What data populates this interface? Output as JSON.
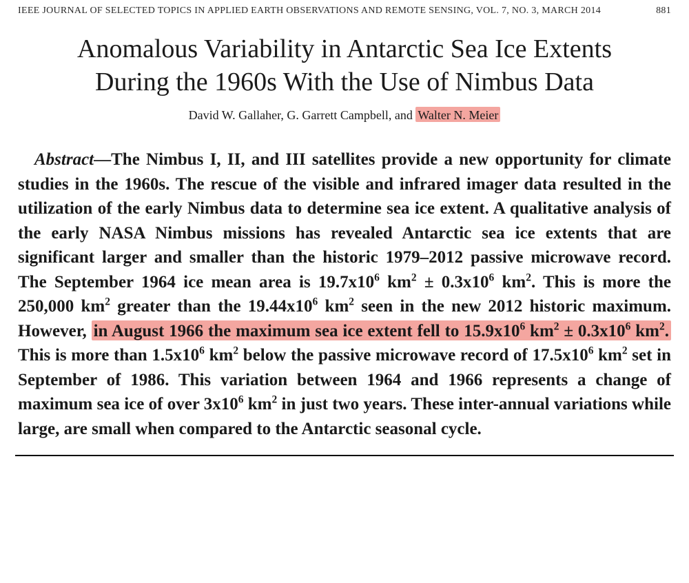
{
  "header": {
    "journal": "IEEE JOURNAL OF SELECTED TOPICS IN APPLIED EARTH OBSERVATIONS AND REMOTE SENSING, VOL. 7, NO. 3, MARCH 2014",
    "page_number": "881"
  },
  "title": {
    "line1": "Anomalous Variability in Antarctic Sea Ice Extents",
    "line2": "During the 1960s With the Use of Nimbus Data"
  },
  "authors": {
    "a1": "David W. Gallaher",
    "sep1": ",  ",
    "a2": "G. Garrett Campbell",
    "sep2": ", and ",
    "a3": "Walter N. Meier"
  },
  "abstract": {
    "label": "Abstract",
    "dash": "—",
    "p1a": "The Nimbus I, II, and III satellites provide a new opportunity for climate studies in the 1960s. The rescue of the visible and infrared imager data resulted in the utilization of the early Nimbus data to determine sea ice extent. A qualitative analysis of the early NASA Nimbus missions has revealed Antarctic sea ice extents that are significant larger and smaller than the historic 1979–2012 passive microwave record. The September 1964 ice mean area is ",
    "val1": "19.7x10",
    "unit_km2": " km",
    "pm": " ± ",
    "val2": "0.3x10",
    "p1b": ". This is more the 250,000 km",
    "p1c": " greater than the ",
    "val3": "19.44x10",
    "p1d": " seen in the new 2012 historic maximum. However, ",
    "hl1": "in August 1966 the maximum sea ice extent fell to ",
    "val4": "15.9x10",
    "val5": "0.3x10",
    "hl2": ". ",
    "p1e": "This is more than ",
    "val6": "1.5x10",
    "p1f": " below the passive microwave record of ",
    "val7": "17.5x10",
    "p1g": " set in September of 1986. This variation between 1964 and 1966 represents a change of maximum sea ice of over ",
    "val8": "3x10",
    "p1h": " in just two years. These inter-annual variations while large, are small when compared to the Antarctic seasonal cycle.",
    "exp6": "6",
    "exp2": "2"
  },
  "highlight_color": "#f4a6a0",
  "text_color": "#1a1a1a",
  "background_color": "#ffffff"
}
